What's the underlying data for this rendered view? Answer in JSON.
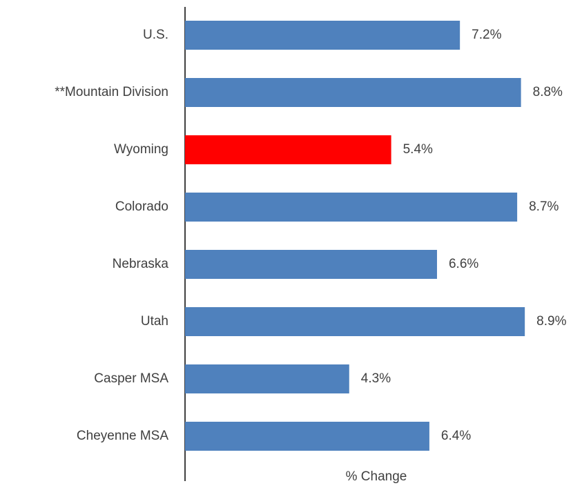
{
  "chart_data": {
    "type": "hbar",
    "categories": [
      "U.S.",
      "**Mountain Division",
      "Wyoming",
      "Colorado",
      "Nebraska",
      "Utah",
      "Casper MSA",
      "Cheyenne MSA"
    ],
    "values": [
      7.2,
      8.8,
      5.4,
      8.7,
      6.6,
      8.9,
      4.3,
      6.4
    ],
    "value_labels": [
      "7.2%",
      "8.8%",
      "5.4%",
      "8.7%",
      "6.6%",
      "8.9%",
      "4.3%",
      "6.4%"
    ],
    "colors": [
      "#4f81bd",
      "#4f81bd",
      "#ff0000",
      "#4f81bd",
      "#4f81bd",
      "#4f81bd",
      "#4f81bd",
      "#4f81bd"
    ],
    "xlabel": "% Change"
  }
}
